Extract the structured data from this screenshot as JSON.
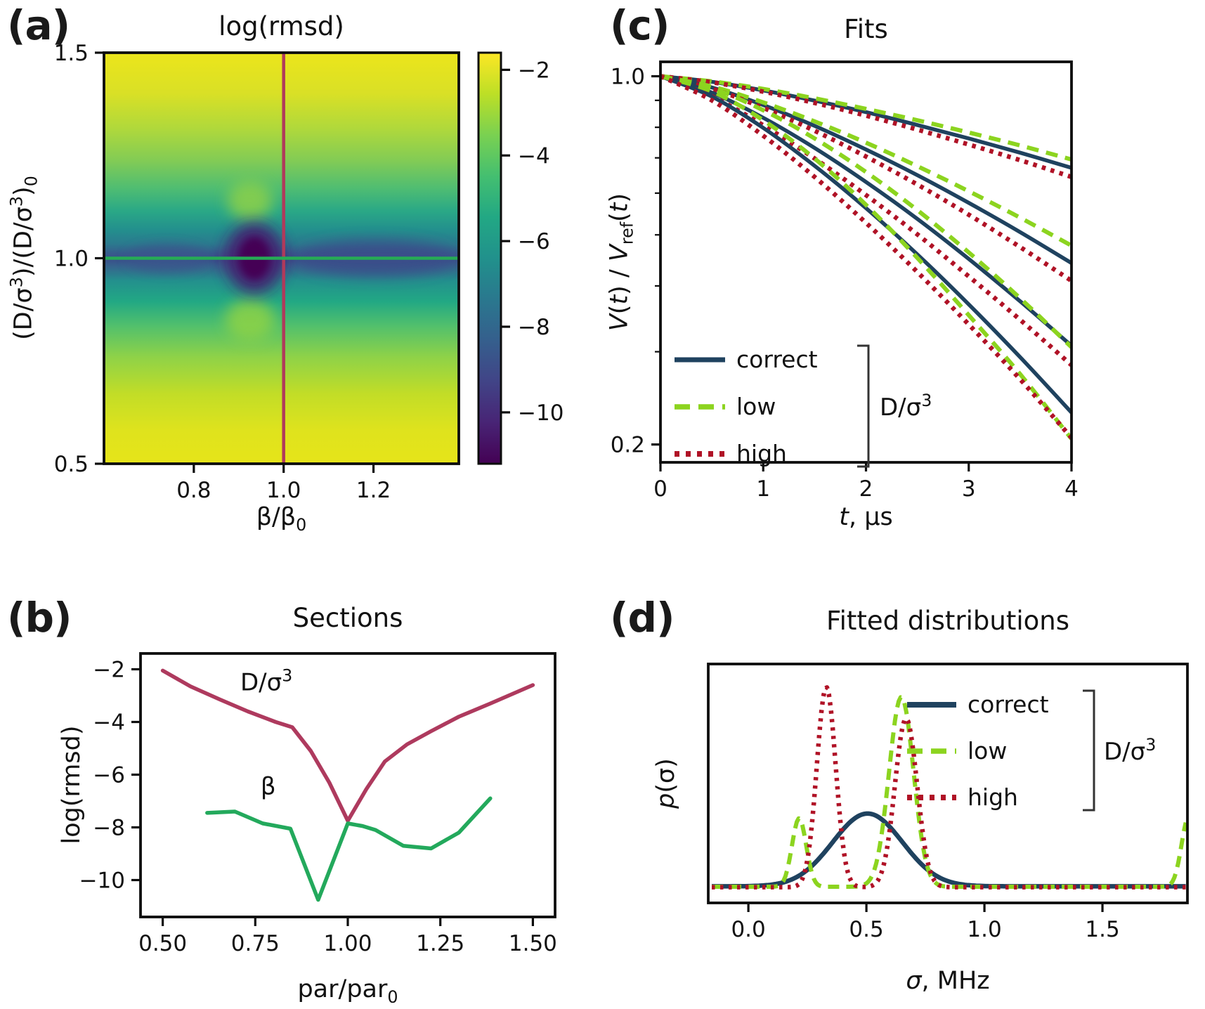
{
  "figure": {
    "background": "#ffffff",
    "text_color": "#111111",
    "spine_color": "#0d0d0d",
    "panel_letters": [
      "(a)",
      "(b)",
      "(c)",
      "(d)"
    ]
  },
  "chart_data": [
    {
      "panel": "a",
      "type": "heatmap",
      "panel_label": "(a)",
      "title": "log(rmsd)",
      "xlabel_segments": [
        {
          "t": "β/β"
        },
        {
          "t": "0",
          "s": "sub"
        }
      ],
      "ylabel_segments": [
        {
          "t": "(D/σ"
        },
        {
          "t": "3",
          "s": "sup"
        },
        {
          "t": ")/(D/σ"
        },
        {
          "t": "3",
          "s": "sup"
        },
        {
          "t": ")"
        },
        {
          "t": "0",
          "s": "sub"
        }
      ],
      "x_domain": [
        0.6,
        1.39
      ],
      "y_domain": [
        0.5,
        1.5
      ],
      "x_ticks": [
        0.8,
        1.0,
        1.2
      ],
      "x_tick_labels": [
        "0.8",
        "1.0",
        "1.2"
      ],
      "y_ticks": [
        0.5,
        1.0,
        1.5
      ],
      "y_tick_labels": [
        "0.5",
        "1.0",
        "1.5"
      ],
      "value_label": "log(rmsd)",
      "minimum": {
        "x": 0.93,
        "y": 1.0,
        "value": -11
      },
      "field": {
        "profile": [
          [
            0,
            "#ece51b"
          ],
          [
            0.1,
            "#d9e026"
          ],
          [
            0.18,
            "#b2d93a"
          ],
          [
            0.26,
            "#84cc54"
          ],
          [
            0.33,
            "#4fbd72"
          ],
          [
            0.385,
            "#2aa886"
          ],
          [
            0.43,
            "#23908d"
          ],
          [
            0.465,
            "#2b7a8e"
          ],
          [
            0.49,
            "#38598c"
          ],
          [
            0.503,
            "#3a4f8a"
          ],
          [
            0.52,
            "#36648d"
          ],
          [
            0.555,
            "#23908d"
          ],
          [
            0.605,
            "#22a884"
          ],
          [
            0.665,
            "#52c06c"
          ],
          [
            0.74,
            "#8ed248"
          ],
          [
            0.83,
            "#c2dd27"
          ],
          [
            0.92,
            "#dfe31d"
          ],
          [
            1,
            "#e6e419"
          ]
        ],
        "features": [
          {
            "cx": 1.205,
            "cy": 1.0,
            "rx": 0.175,
            "ry": 0.042,
            "fill": "#3b4d8a",
            "blur": 10,
            "opacity": 0.9
          },
          {
            "cx": 0.74,
            "cy": 1.0,
            "rx": 0.09,
            "ry": 0.032,
            "fill": "#3b548c",
            "blur": 8,
            "opacity": 0.75
          },
          {
            "cx": 0.925,
            "cy": 1.14,
            "rx": 0.05,
            "ry": 0.048,
            "fill": "#8cd04a",
            "blur": 10,
            "opacity": 0.85
          },
          {
            "cx": 0.925,
            "cy": 0.85,
            "rx": 0.055,
            "ry": 0.05,
            "fill": "#93d443",
            "blur": 10,
            "opacity": 0.8
          },
          {
            "cx": 0.935,
            "cy": 1.0,
            "rx": 0.065,
            "ry": 0.085,
            "fill": "#451a6e",
            "blur": 11,
            "opacity": 0.95
          },
          {
            "cx": 0.935,
            "cy": 1.0,
            "rx": 0.034,
            "ry": 0.05,
            "fill": "#440154",
            "blur": 5,
            "opacity": 1
          }
        ]
      },
      "crosshair": {
        "vline_x": 1.0,
        "vline_color": "#b03a5b",
        "hline_y": 1.0,
        "hline_color": "#26ab55"
      },
      "colorbar": {
        "domain": [
          -11.2,
          -1.6
        ],
        "ticks": [
          -2,
          -4,
          -6,
          -8,
          -10
        ],
        "tick_labels": [
          "−2",
          "−4",
          "−6",
          "−8",
          "−10"
        ],
        "stops": [
          [
            0,
            "#440154"
          ],
          [
            0.1,
            "#482475"
          ],
          [
            0.2,
            "#414487"
          ],
          [
            0.3,
            "#355f8d"
          ],
          [
            0.4,
            "#2a788e"
          ],
          [
            0.5,
            "#21918c"
          ],
          [
            0.6,
            "#22a884"
          ],
          [
            0.7,
            "#44bf70"
          ],
          [
            0.8,
            "#7ad151"
          ],
          [
            0.9,
            "#bddf26"
          ],
          [
            1,
            "#fde725"
          ]
        ]
      }
    },
    {
      "panel": "b",
      "type": "line",
      "panel_label": "(b)",
      "title": "Sections",
      "xlabel_segments": [
        {
          "t": "par/par"
        },
        {
          "t": "0",
          "s": "sub"
        }
      ],
      "ylabel_segments": [
        {
          "t": "log(rmsd)"
        }
      ],
      "x_domain": [
        0.44,
        1.56
      ],
      "y_domain": [
        -11.4,
        -1.4
      ],
      "x_ticks": [
        0.5,
        0.75,
        1.0,
        1.25,
        1.5
      ],
      "x_tick_labels": [
        "0.50",
        "0.75",
        "1.00",
        "1.25",
        "1.50"
      ],
      "y_ticks": [
        -2,
        -4,
        -6,
        -8,
        -10
      ],
      "y_tick_labels": [
        "−2",
        "−4",
        "−6",
        "−8",
        "−10"
      ],
      "series": [
        {
          "name": "D/sigma3-section",
          "color": "#ae3a5e",
          "width": 5.5,
          "points": [
            [
              0.5,
              -2.05
            ],
            [
              0.575,
              -2.65
            ],
            [
              0.655,
              -3.15
            ],
            [
              0.73,
              -3.6
            ],
            [
              0.805,
              -4.0
            ],
            [
              0.85,
              -4.2
            ],
            [
              0.9,
              -5.1
            ],
            [
              0.95,
              -6.3
            ],
            [
              1.0,
              -7.75
            ],
            [
              1.05,
              -6.55
            ],
            [
              1.1,
              -5.5
            ],
            [
              1.16,
              -4.85
            ],
            [
              1.225,
              -4.35
            ],
            [
              1.3,
              -3.8
            ],
            [
              1.385,
              -3.3
            ],
            [
              1.5,
              -2.6
            ]
          ],
          "annotation": {
            "segments": [
              {
                "t": "D/σ"
              },
              {
                "t": "3",
                "s": "sup"
              }
            ],
            "x": 0.78,
            "y": -2.8
          }
        },
        {
          "name": "beta-section",
          "color": "#23a95c",
          "width": 5.5,
          "points": [
            [
              0.62,
              -7.45
            ],
            [
              0.695,
              -7.4
            ],
            [
              0.77,
              -7.85
            ],
            [
              0.845,
              -8.05
            ],
            [
              0.92,
              -10.75
            ],
            [
              1.0,
              -7.85
            ],
            [
              1.04,
              -7.95
            ],
            [
              1.075,
              -8.1
            ],
            [
              1.15,
              -8.7
            ],
            [
              1.225,
              -8.8
            ],
            [
              1.3,
              -8.2
            ],
            [
              1.385,
              -6.9
            ]
          ],
          "annotation": {
            "segments": [
              {
                "t": "β"
              }
            ],
            "x": 0.785,
            "y": -6.75
          }
        }
      ]
    },
    {
      "panel": "c",
      "type": "line",
      "panel_label": "(c)",
      "title": "Fits",
      "xlabel_segments": [
        {
          "t": "t",
          "s": "it"
        },
        {
          "t": ", μs"
        }
      ],
      "ylabel_segments": [
        {
          "t": "V",
          "s": "it"
        },
        {
          "t": "("
        },
        {
          "t": "t",
          "s": "it"
        },
        {
          "t": ") / "
        },
        {
          "t": "V",
          "s": "it"
        },
        {
          "t": "ref",
          "s": "sub"
        },
        {
          "t": "("
        },
        {
          "t": "t",
          "s": "it"
        },
        {
          "t": ")"
        }
      ],
      "x_domain": [
        0,
        4
      ],
      "y_domain_log": [
        0.185,
        1.065
      ],
      "x_ticks": [
        0,
        1,
        2,
        3,
        4
      ],
      "x_tick_labels": [
        "0",
        "1",
        "2",
        "3",
        "4"
      ],
      "y_ticks_major": [
        1.0,
        0.2
      ],
      "y_tick_labels": [
        "1.0",
        "0.2"
      ],
      "y_ticks_minor": [
        0.9,
        0.8,
        0.7,
        0.6,
        0.5,
        0.4,
        0.3
      ],
      "roles": {
        "correct": {
          "color": "#1f425f",
          "dash": "",
          "width": 5.5
        },
        "low": {
          "color": "#8cd41f",
          "dash": "17 11",
          "width": 6
        },
        "high": {
          "color": "#b01226",
          "dash": "5.5 7.5",
          "width": 6.5
        }
      },
      "t": [
        0,
        0.5,
        1,
        1.5,
        2,
        2.5,
        3,
        3.5,
        4
      ],
      "series": [
        {
          "group": 1,
          "role": "correct",
          "values": [
            1,
            0.976,
            0.94,
            0.899,
            0.855,
            0.808,
            0.762,
            0.716,
            0.67
          ]
        },
        {
          "group": 1,
          "role": "low",
          "values": [
            1,
            0.978,
            0.946,
            0.908,
            0.867,
            0.825,
            0.782,
            0.739,
            0.695
          ]
        },
        {
          "group": 1,
          "role": "high",
          "values": [
            1,
            0.974,
            0.935,
            0.89,
            0.842,
            0.792,
            0.742,
            0.693,
            0.644
          ]
        },
        {
          "group": 2,
          "role": "correct",
          "values": [
            1,
            0.952,
            0.882,
            0.805,
            0.726,
            0.649,
            0.575,
            0.506,
            0.442
          ]
        },
        {
          "group": 2,
          "role": "low",
          "values": [
            1,
            0.956,
            0.892,
            0.821,
            0.748,
            0.675,
            0.605,
            0.539,
            0.477
          ]
        },
        {
          "group": 2,
          "role": "high",
          "values": [
            1,
            0.947,
            0.871,
            0.788,
            0.704,
            0.623,
            0.546,
            0.474,
            0.409
          ]
        },
        {
          "group": 3,
          "role": "correct",
          "values": [
            1,
            0.931,
            0.834,
            0.731,
            0.63,
            0.536,
            0.45,
            0.374,
            0.308
          ]
        },
        {
          "group": 3,
          "role": "low",
          "values": [
            1,
            0.949,
            0.862,
            0.762,
            0.658,
            0.557,
            0.463,
            0.379,
            0.306
          ]
        },
        {
          "group": 3,
          "role": "high",
          "values": [
            1,
            0.916,
            0.807,
            0.698,
            0.595,
            0.501,
            0.417,
            0.345,
            0.283
          ]
        },
        {
          "group": 4,
          "role": "correct",
          "values": [
            1,
            0.915,
            0.798,
            0.676,
            0.562,
            0.459,
            0.369,
            0.293,
            0.23
          ]
        },
        {
          "group": 4,
          "role": "low",
          "values": [
            1,
            0.936,
            0.825,
            0.698,
            0.57,
            0.452,
            0.352,
            0.272,
            0.205
          ]
        },
        {
          "group": 4,
          "role": "high",
          "values": [
            1,
            0.9,
            0.771,
            0.644,
            0.527,
            0.425,
            0.338,
            0.266,
            0.206
          ]
        }
      ],
      "legend": {
        "items": [
          {
            "label": "correct",
            "role": "correct"
          },
          {
            "label": "low",
            "role": "low"
          },
          {
            "label": "high",
            "role": "high"
          }
        ],
        "bracket_label_segments": [
          {
            "t": "D/σ"
          },
          {
            "t": "3",
            "s": "sup"
          }
        ]
      }
    },
    {
      "panel": "d",
      "type": "line",
      "panel_label": "(d)",
      "title": "Fitted distributions",
      "xlabel_segments": [
        {
          "t": "σ",
          "s": "it"
        },
        {
          "t": ", MHz"
        }
      ],
      "ylabel_segments": [
        {
          "t": "p",
          "s": "it"
        },
        {
          "t": "(σ)"
        }
      ],
      "x_domain": [
        -0.17,
        1.86
      ],
      "x_ticks": [
        0.0,
        0.5,
        1.0,
        1.5
      ],
      "x_tick_labels": [
        "0.0",
        "0.5",
        "1.0",
        "1.5"
      ],
      "y_domain": [
        0,
        1.05
      ],
      "distributions": [
        {
          "role": "correct",
          "baseline": 0.012,
          "components": [
            {
              "center": 0.505,
              "amp": 0.345,
              "width": 0.148
            }
          ]
        },
        {
          "role": "low",
          "baseline": 0.01,
          "components": [
            {
              "center": 0.215,
              "amp": 0.325,
              "width": 0.03
            },
            {
              "center": 0.648,
              "amp": 0.9,
              "width": 0.052
            },
            {
              "center": 1.865,
              "amp": 0.33,
              "width": 0.03
            }
          ]
        },
        {
          "role": "high",
          "baseline": 0.008,
          "components": [
            {
              "center": 0.33,
              "amp": 0.95,
              "width": 0.04
            },
            {
              "center": 0.668,
              "amp": 0.8,
              "width": 0.047
            }
          ]
        }
      ],
      "roles": {
        "correct": {
          "color": "#1f425f",
          "dash": "",
          "width": 6.5
        },
        "low": {
          "color": "#8cd41f",
          "dash": "16 10",
          "width": 6
        },
        "high": {
          "color": "#b01226",
          "dash": "4.5 7.5",
          "width": 6.5
        }
      },
      "legend": {
        "items": [
          {
            "label": "correct",
            "role": "correct"
          },
          {
            "label": "low",
            "role": "low"
          },
          {
            "label": "high",
            "role": "high"
          }
        ],
        "bracket_label_segments": [
          {
            "t": "D/σ"
          },
          {
            "t": "3",
            "s": "sup"
          }
        ]
      }
    }
  ]
}
